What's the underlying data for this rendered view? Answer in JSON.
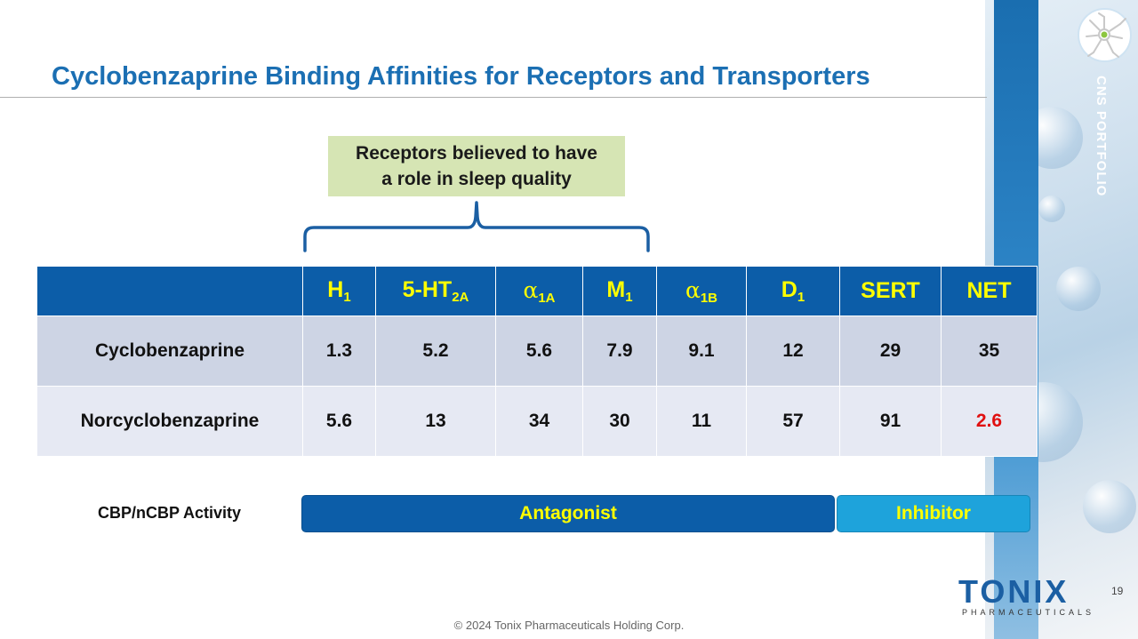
{
  "slide": {
    "title": "Cyclobenzaprine Binding Affinities for Receptors and Transporters",
    "side_label": "CNS PORTFOLIO",
    "callout": {
      "line1": "Receptors believed to have",
      "line2": "a role in sleep quality"
    },
    "table": {
      "headers": [
        {
          "base": "H",
          "sub": "1",
          "greek": false
        },
        {
          "base": "5-HT",
          "sub": "2A",
          "greek": false
        },
        {
          "base": "α",
          "sub": "1A",
          "greek": true
        },
        {
          "base": "M",
          "sub": "1",
          "greek": false
        },
        {
          "base": "α",
          "sub": "1B",
          "greek": true
        },
        {
          "base": "D",
          "sub": "1",
          "greek": false
        },
        {
          "base": "SERT",
          "sub": "",
          "greek": false
        },
        {
          "base": "NET",
          "sub": "",
          "greek": false
        }
      ],
      "rows": [
        {
          "label": "Cyclobenzaprine",
          "values": [
            "1.3",
            "5.2",
            "5.6",
            "7.9",
            "9.1",
            "12",
            "29",
            "35"
          ]
        },
        {
          "label": "Norcyclobenzaprine",
          "values": [
            "5.6",
            "13",
            "34",
            "30",
            "11",
            "57",
            "91",
            "2.6"
          ]
        }
      ],
      "highlight_value": "2.6",
      "highlight_color": "#e01010"
    },
    "activity": {
      "label": "CBP/nCBP Activity",
      "antagonist": "Antagonist",
      "inhibitor": "Inhibitor"
    },
    "logo": {
      "word": "TONIX",
      "sub": "PHARMACEUTICALS"
    },
    "page_number": "19",
    "copyright": "© 2024 Tonix Pharmaceuticals Holding Corp.",
    "colors": {
      "title": "#1b6fb3",
      "header_bg": "#0c5da8",
      "header_text": "#ffff00",
      "row1_bg": "#cdd4e4",
      "row2_bg": "#e6e9f3",
      "callout_bg": "#d6e5b4",
      "antagonist_bg": "#0c5da8",
      "inhibitor_bg": "#1ea3db"
    },
    "icons": {
      "badge": "neuron-icon"
    }
  }
}
